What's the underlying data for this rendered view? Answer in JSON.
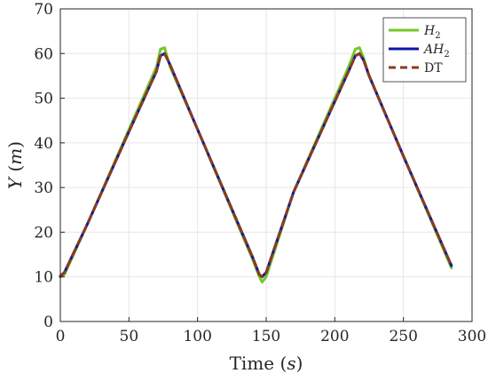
{
  "chart_data": {
    "type": "line",
    "title": "",
    "xlabel": "Time (s)",
    "ylabel": "Y (m)",
    "xlim": [
      0,
      300
    ],
    "ylim": [
      0,
      70
    ],
    "xticks": [
      0,
      50,
      100,
      150,
      200,
      250,
      300
    ],
    "yticks": [
      0,
      10,
      20,
      30,
      40,
      50,
      60,
      70
    ],
    "grid": true,
    "legend_position": "top-right",
    "series": [
      {
        "name": "H2",
        "color": "#77c72a",
        "style": "solid",
        "x": [
          0,
          3,
          20,
          50,
          70,
          73,
          76,
          80,
          100,
          140,
          145,
          147,
          150,
          170,
          210,
          215,
          218,
          221,
          225,
          250,
          285
        ],
        "y": [
          10,
          10.5,
          22,
          43,
          57,
          61,
          61.3,
          57,
          43,
          14,
          10,
          8.8,
          10,
          29,
          57,
          61,
          61.3,
          59,
          55,
          37,
          12
        ]
      },
      {
        "name": "AH2",
        "color": "#0c17a8",
        "style": "solid",
        "x": [
          0,
          3,
          20,
          50,
          70,
          73,
          76,
          80,
          100,
          140,
          145,
          147,
          150,
          170,
          210,
          215,
          218,
          221,
          225,
          250,
          285
        ],
        "y": [
          10.2,
          11,
          22,
          42.5,
          56,
          59.5,
          60,
          57.5,
          43,
          14.5,
          10.5,
          10,
          11,
          29,
          56,
          59.5,
          60,
          58.5,
          55,
          37,
          12.5
        ]
      },
      {
        "name": "DT",
        "color": "#8b3b1e",
        "style": "dashed",
        "x": [
          0,
          3,
          20,
          50,
          70,
          73,
          76,
          80,
          100,
          140,
          145,
          147,
          150,
          170,
          210,
          215,
          218,
          221,
          225,
          250,
          285
        ],
        "y": [
          10,
          11,
          22,
          42.5,
          56,
          59.5,
          60,
          57.5,
          43,
          14.5,
          10.5,
          10,
          11,
          29,
          56,
          59.5,
          60,
          58.5,
          55,
          37,
          12.5
        ]
      }
    ]
  },
  "legend": {
    "labels": [
      "H",
      "AH",
      "DT"
    ],
    "subscripts": [
      "2",
      "2",
      ""
    ]
  },
  "axis_text": {
    "y_main": "Y",
    "y_unit": "m",
    "x_main": "Time",
    "x_unit": "s"
  }
}
